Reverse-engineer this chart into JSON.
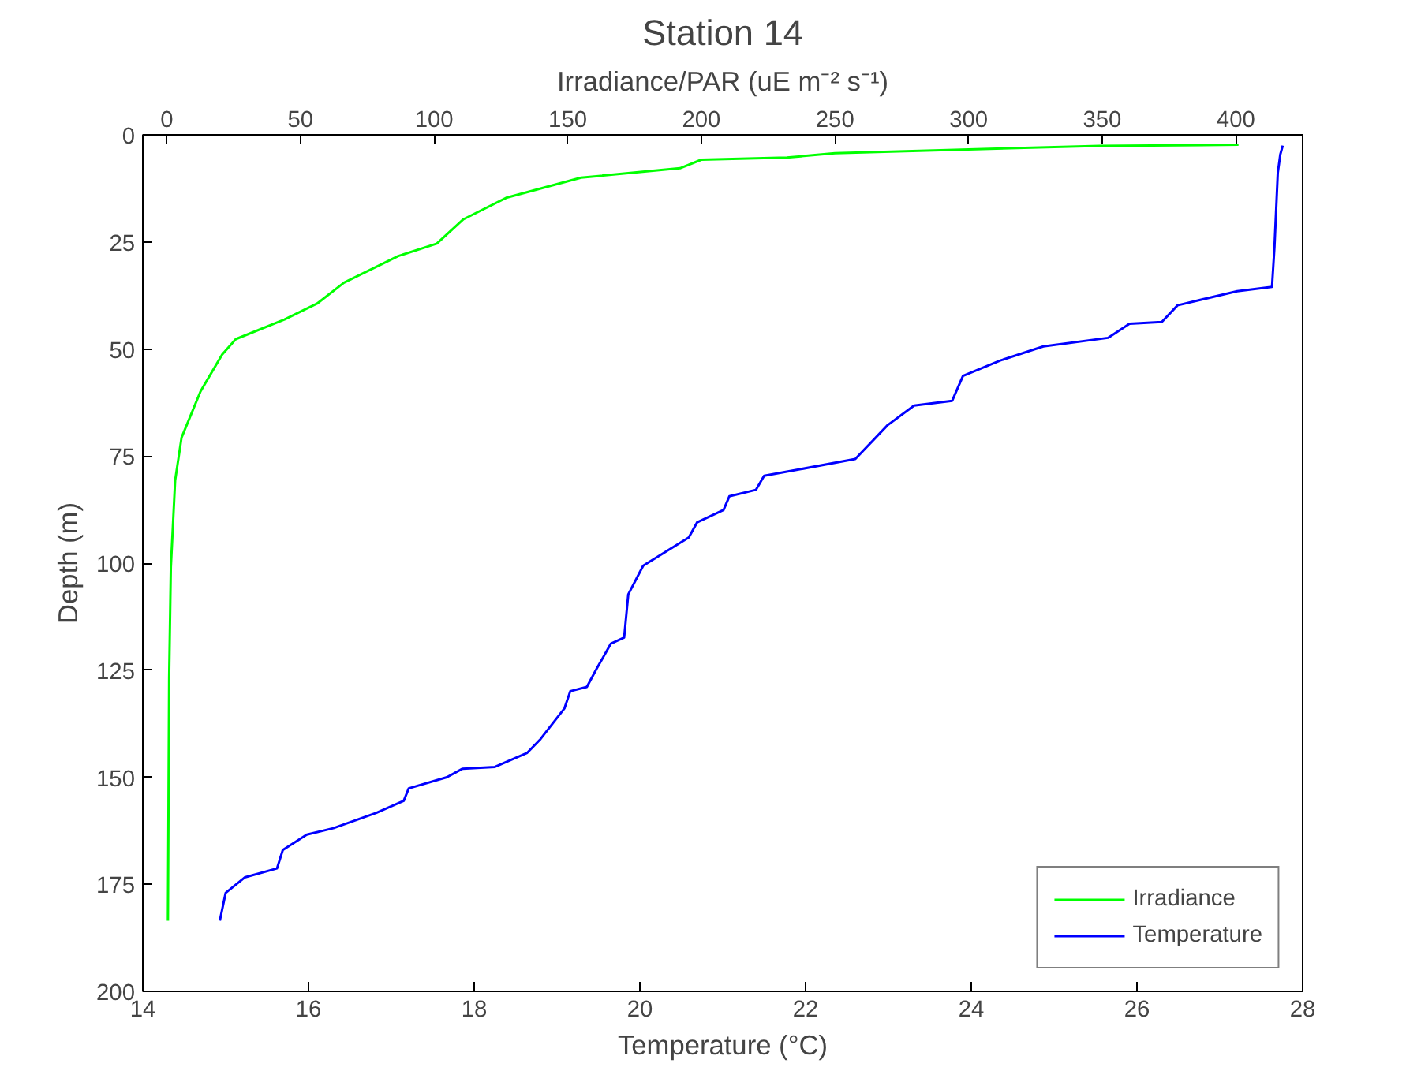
{
  "chart_data": {
    "type": "line",
    "title": "Station 14",
    "xlabel": "Temperature (°C)",
    "ylabel": "Depth (m)",
    "x2label": "Irradiance/PAR (uE m⁻² s⁻¹)",
    "xlim": [
      14,
      28
    ],
    "xticks": [
      14,
      16,
      18,
      20,
      22,
      24,
      26,
      28
    ],
    "x2lim": [
      -9,
      425
    ],
    "x2ticks": [
      0,
      50,
      100,
      150,
      200,
      250,
      300,
      350,
      400
    ],
    "ylim": [
      200,
      0
    ],
    "yticks": [
      0,
      25,
      50,
      75,
      100,
      125,
      150,
      175,
      200
    ],
    "grid": false,
    "legend": "bottom right",
    "marker": "none",
    "line_style": "solid",
    "series": [
      {
        "name": "Irradiance",
        "color": "#00ff00",
        "axis": "x2",
        "x": [
          401,
          349,
          300,
          250,
          232,
          200,
          192,
          155,
          127,
          111,
          101,
          86.6,
          66.3,
          56.2,
          44,
          25.8,
          20.7,
          12.6,
          5.5,
          3.1,
          1.5,
          0.85,
          0.4
        ],
        "values": [
          2.3,
          2.6,
          3.4,
          4.3,
          5.3,
          5.8,
          7.8,
          10.0,
          14.7,
          19.7,
          25.4,
          28.3,
          34.5,
          39.4,
          43.1,
          47.7,
          51.3,
          59.9,
          70.7,
          80.7,
          100.9,
          126.7,
          183.5
        ]
      },
      {
        "name": "Temperature",
        "color": "#0000ff",
        "x": [
          27.76,
          27.73,
          27.7,
          27.66,
          27.63,
          27.21,
          26.49,
          26.3,
          25.91,
          25.65,
          24.87,
          24.35,
          23.9,
          23.77,
          23.31,
          22.99,
          22.6,
          21.76,
          21.5,
          21.4,
          21.08,
          21.01,
          20.69,
          20.59,
          20.04,
          19.86,
          19.81,
          19.65,
          19.48,
          19.36,
          19.16,
          19.09,
          18.8,
          18.64,
          18.25,
          17.86,
          17.67,
          17.21,
          17.15,
          16.82,
          16.3,
          15.98,
          15.69,
          15.62,
          15.23,
          15.0,
          14.93
        ],
        "values": [
          2.5,
          4.6,
          8.9,
          26.2,
          35.5,
          36.5,
          39.8,
          43.7,
          44.1,
          47.4,
          49.4,
          52.7,
          56.3,
          62.1,
          63.2,
          67.8,
          75.7,
          78.7,
          79.6,
          82.9,
          84.4,
          87.6,
          90.5,
          94,
          100.6,
          107.3,
          117.4,
          118.8,
          124.6,
          128.9,
          129.9,
          133.9,
          141.1,
          144.3,
          147.6,
          148,
          150,
          152.6,
          155.5,
          158.3,
          161.9,
          163.4,
          167,
          171.3,
          173.4,
          177,
          183.5
        ]
      }
    ]
  }
}
